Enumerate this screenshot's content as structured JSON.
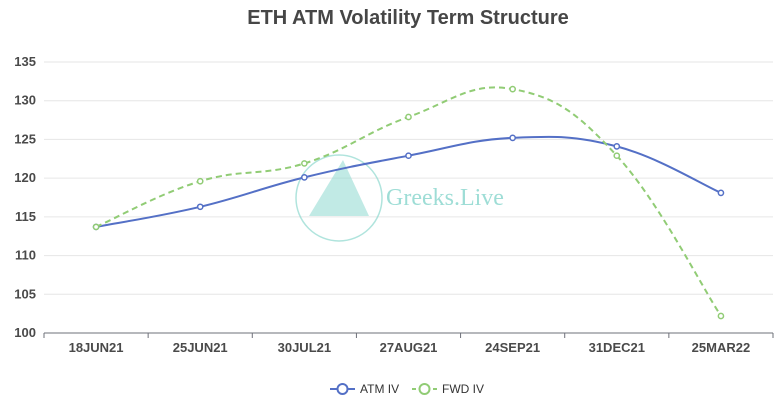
{
  "chart_data": {
    "type": "line",
    "title": "ETH ATM Volatility Term Structure",
    "categories": [
      "18JUN21",
      "25JUN21",
      "30JUL21",
      "27AUG21",
      "24SEP21",
      "31DEC21",
      "25MAR22"
    ],
    "yticks": [
      100,
      105,
      110,
      115,
      120,
      125,
      130,
      135
    ],
    "ylim": [
      100,
      135
    ],
    "grid": true,
    "legend_position": "bottom-center",
    "series": [
      {
        "name": "ATM IV",
        "values": [
          113.7,
          116.3,
          120.1,
          122.9,
          125.2,
          124.1,
          118.1
        ],
        "color": "#5470c6",
        "style": "solid"
      },
      {
        "name": "FWD IV",
        "values": [
          113.7,
          119.6,
          121.9,
          127.9,
          131.5,
          122.9,
          102.2
        ],
        "color": "#91cc75",
        "style": "dashed"
      }
    ]
  },
  "watermark": {
    "text": "Greeks.Live",
    "color": "#8ed8cf"
  }
}
